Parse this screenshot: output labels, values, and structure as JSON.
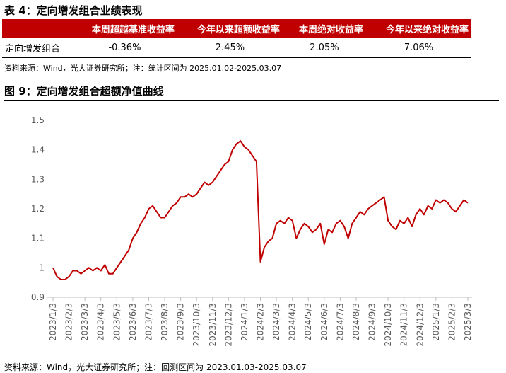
{
  "table_title": "表 4：定向增发组合业绩表现",
  "table": {
    "headers": [
      "本周超越基准收益率",
      "今年以来超额收益率",
      "本周绝对收益率",
      "今年以来绝对收益率"
    ],
    "rows": [
      [
        "定向增发组合",
        "-0.36%",
        "2.45%",
        "2.05%",
        "7.06%"
      ]
    ]
  },
  "table_source": "资料来源：Wind，光大证券研究所；注：统计区间为 2025.01.02-2025.03.07",
  "chart_data": {
    "type": "line",
    "title": "图 9：定向增发组合超额净值曲线",
    "categories": [
      "2023/1/3",
      null,
      null,
      null,
      "2023/2/3",
      null,
      null,
      null,
      "2023/3/3",
      null,
      null,
      null,
      "2023/4/3",
      null,
      null,
      null,
      "2023/5/3",
      null,
      null,
      null,
      "2023/6/3",
      null,
      null,
      null,
      "2023/7/3",
      null,
      null,
      null,
      "2023/8/3",
      null,
      null,
      null,
      "2023/9/3",
      null,
      null,
      null,
      "2023/10/3",
      null,
      null,
      null,
      "2023/11/3",
      null,
      null,
      null,
      "2023/12/3",
      null,
      null,
      null,
      "2024/1/3",
      null,
      null,
      null,
      "2024/2/3",
      null,
      null,
      null,
      "2024/3/3",
      null,
      null,
      null,
      "2024/4/3",
      null,
      null,
      null,
      "2024/5/3",
      null,
      null,
      null,
      "2024/6/3",
      null,
      null,
      null,
      "2024/7/3",
      null,
      null,
      null,
      "2024/8/3",
      null,
      null,
      null,
      "2024/9/3",
      null,
      null,
      null,
      "2024/10/3",
      null,
      null,
      null,
      "2024/11/3",
      null,
      null,
      null,
      "2024/12/3",
      null,
      null,
      null,
      "2025/1/3",
      null,
      null,
      null,
      "2025/2/3",
      null,
      null,
      null,
      "2025/3/3"
    ],
    "series": [
      {
        "name": "定向增发组合超额净值",
        "color": "#c00000",
        "values": [
          1.0,
          0.97,
          0.96,
          0.96,
          0.97,
          0.99,
          0.99,
          0.98,
          0.99,
          1.0,
          0.99,
          1.0,
          0.99,
          1.01,
          0.98,
          0.98,
          1.0,
          1.02,
          1.04,
          1.06,
          1.1,
          1.12,
          1.15,
          1.17,
          1.2,
          1.21,
          1.19,
          1.17,
          1.17,
          1.19,
          1.21,
          1.22,
          1.24,
          1.24,
          1.25,
          1.24,
          1.25,
          1.27,
          1.29,
          1.28,
          1.29,
          1.31,
          1.33,
          1.35,
          1.36,
          1.4,
          1.42,
          1.43,
          1.41,
          1.4,
          1.38,
          1.36,
          1.02,
          1.07,
          1.09,
          1.1,
          1.15,
          1.16,
          1.15,
          1.17,
          1.16,
          1.1,
          1.13,
          1.15,
          1.14,
          1.12,
          1.13,
          1.15,
          1.08,
          1.13,
          1.12,
          1.15,
          1.16,
          1.14,
          1.1,
          1.15,
          1.17,
          1.19,
          1.18,
          1.2,
          1.21,
          1.22,
          1.23,
          1.24,
          1.16,
          1.14,
          1.13,
          1.16,
          1.15,
          1.17,
          1.14,
          1.18,
          1.2,
          1.18,
          1.21,
          1.2,
          1.23,
          1.22,
          1.23,
          1.22,
          1.2,
          1.19,
          1.21,
          1.23,
          1.22
        ]
      }
    ],
    "ylim": [
      0.9,
      1.5
    ],
    "yticks": [
      0.9,
      1,
      1.1,
      1.2,
      1.3,
      1.4,
      1.5
    ],
    "grid": false,
    "source": "资料来源：Wind，光大证券研究所；注：回测区间为 2023.01.03-2025.03.07"
  }
}
